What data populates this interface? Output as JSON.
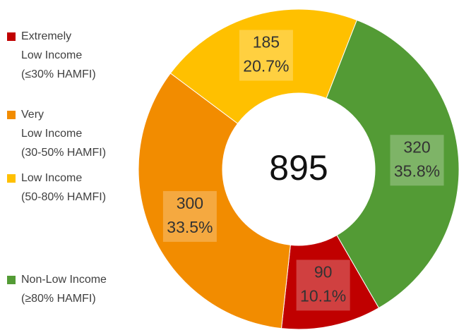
{
  "chart_data": {
    "type": "donut",
    "categories": [
      "Extremely\nLow Income\n(≤30% HAMFI)",
      "Very\nLow Income\n(30-50% HAMFI)",
      "Low Income\n(50-80% HAMFI)",
      "Non-Low Income\n(≥80% HAMFI)"
    ],
    "values": [
      90,
      300,
      185,
      320
    ],
    "percent_labels": [
      "10.1%",
      "33.5%",
      "20.7%",
      "35.8%"
    ],
    "colors": [
      "#c00000",
      "#f28c00",
      "#ffc000",
      "#539b35"
    ],
    "total": 895,
    "legend": "left"
  }
}
